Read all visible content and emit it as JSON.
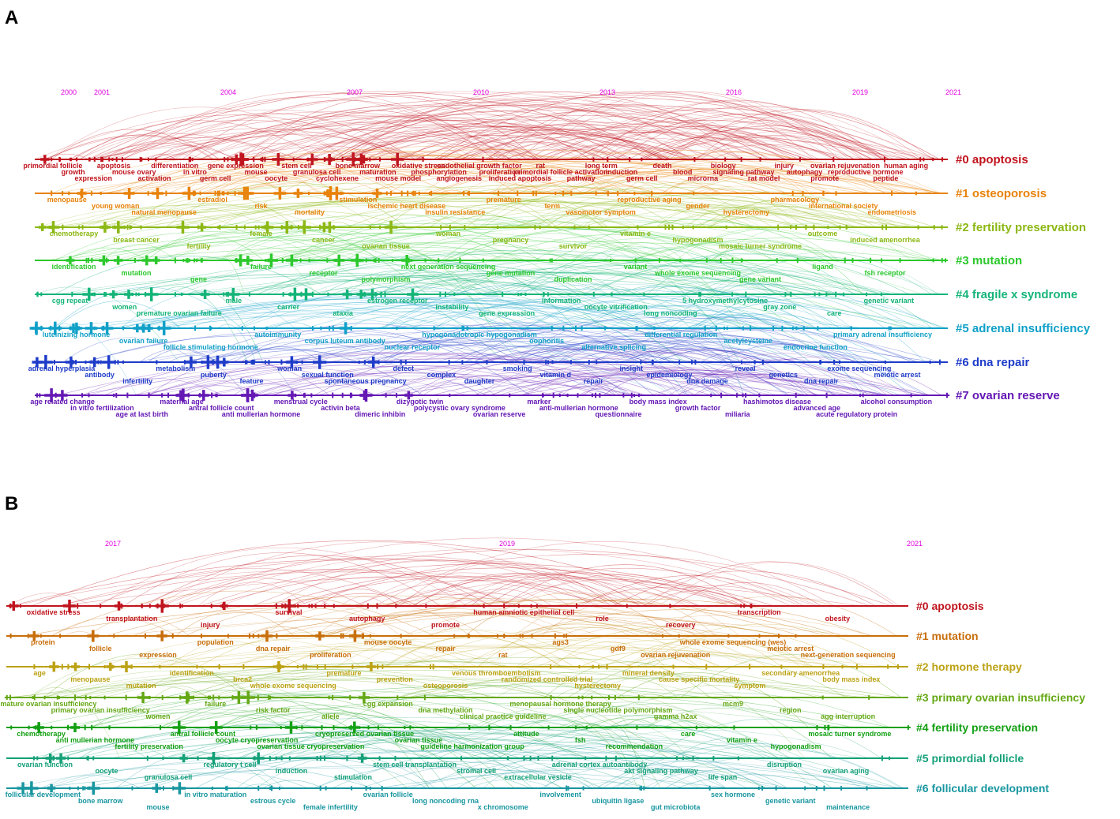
{
  "panels": [
    {
      "letter": "A",
      "years": [
        "2000",
        "2001",
        "2004",
        "2007",
        "2010",
        "2013",
        "2016",
        "2019",
        "2021"
      ],
      "clusters": [
        {
          "label": "#0 apoptosis",
          "color": "#c0141e",
          "keywords": [
            "primordial follicle",
            "growth",
            "expression",
            "apoptosis",
            "mouse ovary",
            "activation",
            "differentiation",
            "in vitro",
            "germ cell",
            "gene expression",
            "mouse",
            "oocyte",
            "stem cell",
            "granulosa cell",
            "cyclohexene",
            "bone marrow",
            "maturation",
            "mouse model",
            "oxidative stress",
            "phosphorylation",
            "angiogenesis",
            "endothelial growth factor",
            "proliferation",
            "induced apoptosis",
            "rat",
            "primordial follicle activation",
            "pathway",
            "long term",
            "induction",
            "germ cell",
            "death",
            "blood",
            "microrna",
            "biology",
            "signaling pathway",
            "rat model",
            "injury",
            "autophagy",
            "promote",
            "ovarian rejuvenation",
            "reproductive hormone",
            "peptide",
            "human aging"
          ]
        },
        {
          "label": "#1 osteoporosis",
          "color": "#e8820a",
          "keywords": [
            "menopause",
            "young woman",
            "natural menopause",
            "estradiol",
            "risk",
            "mortality",
            "stimulation",
            "ischemic heart disease",
            "insulin resistance",
            "premature",
            "term",
            "vasomotor symptom",
            "reproductive aging",
            "gender",
            "hysterectomy",
            "pharmacology",
            "international society",
            "endometriosis"
          ]
        },
        {
          "label": "#2 fertility preservation",
          "color": "#8cb814",
          "keywords": [
            "chemotherapy",
            "breast cancer",
            "fertility",
            "female",
            "cancer",
            "ovarian tissue",
            "woman",
            "pregnancy",
            "survivor",
            "vitamin e",
            "hypogonadism",
            "mosaic turner syndrome",
            "outcome",
            "induced amenorrhea"
          ]
        },
        {
          "label": "#3 mutation",
          "color": "#2cc82c",
          "keywords": [
            "identification",
            "mutation",
            "gene",
            "failure",
            "receptor",
            "polymorphism",
            "next generation sequencing",
            "gene mutation",
            "duplication",
            "variant",
            "whole exome sequencing",
            "gene variant",
            "ligand",
            "fsh receptor"
          ]
        },
        {
          "label": "#4 fragile x syndrome",
          "color": "#14b478",
          "keywords": [
            "cgg repeat",
            "women",
            "premature ovarian failure",
            "male",
            "carrier",
            "ataxia",
            "estrogen receptor",
            "instability",
            "gene expression",
            "information",
            "oocyte vitrification",
            "long noncoding",
            "5 hydroxymethylcytosine",
            "gray zone",
            "care",
            "genetic variant"
          ]
        },
        {
          "label": "#5 adrenal insufficiency",
          "color": "#10a0c8",
          "keywords": [
            "luteinizing hormone",
            "ovarian failure",
            "follicle stimulating hormone",
            "autoimmunity",
            "corpus luteum antibody",
            "nuclear receptor",
            "hypogonadotropic hypogonadism",
            "oophoritis",
            "alternative splicing",
            "differential regulation",
            "acetylcysteine",
            "endocrine function",
            "primary adrenal insufficiency"
          ]
        },
        {
          "label": "#6 dna repair",
          "color": "#1e3cc8",
          "keywords": [
            "adrenal hyperplasia",
            "antibody",
            "infertility",
            "metabolism",
            "puberty",
            "feature",
            "woman",
            "sexual function",
            "spontaneous pregnancy",
            "defect",
            "complex",
            "daughter",
            "smoking",
            "vitamin d",
            "repair",
            "insight",
            "epidemiology",
            "dna damage",
            "reveal",
            "genetics",
            "dna repair",
            "exome sequencing",
            "meiotic arrest"
          ]
        },
        {
          "label": "#7 ovarian reserve",
          "color": "#6418b4",
          "keywords": [
            "age related change",
            "in vitro fertilization",
            "age at last birth",
            "maternal age",
            "antral follicle count",
            "anti mullerian hormone",
            "menstrual cycle",
            "activin beta",
            "dimeric inhibin",
            "dizygotic twin",
            "polycystic ovary syndrome",
            "ovarian reserve",
            "marker",
            "anti-mullerian hormone",
            "questionnaire",
            "body mass index",
            "growth factor",
            "miliaria",
            "hashimotos disease",
            "advanced age",
            "acute regulatory protein",
            "alcohol consumption"
          ]
        }
      ]
    },
    {
      "letter": "B",
      "years": [
        "2017",
        "2019",
        "2021"
      ],
      "clusters": [
        {
          "label": "#0 apoptosis",
          "color": "#c0141e",
          "keywords": [
            "oxidative stress",
            "transplantation",
            "injury",
            "survival",
            "autophagy",
            "promote",
            "human amniotic epithelial cell",
            "role",
            "recovery",
            "transcription",
            "obesity"
          ]
        },
        {
          "label": "#1 mutation",
          "color": "#c86e0a",
          "keywords": [
            "protein",
            "follicle",
            "expression",
            "population",
            "dna repair",
            "proliferation",
            "mouse oocyte",
            "repair",
            "rat",
            "ags3",
            "gdf9",
            "ovarian rejuvenation",
            "whole exome sequencing (wes)",
            "meiotic arrest",
            "next-generation sequencing"
          ]
        },
        {
          "label": "#2 hormone therapy",
          "color": "#bca214",
          "keywords": [
            "age",
            "menopause",
            "mutation",
            "identification",
            "brca2",
            "whole exome sequencing",
            "premature",
            "prevention",
            "osteoporosis",
            "venous thromboembolism",
            "randomized controlled trial",
            "hysterectomy",
            "mineral density",
            "cause specific mortality",
            "symptom",
            "secondary amenorrhea",
            "body mass index"
          ]
        },
        {
          "label": "#3 primary ovarian insufficiency",
          "color": "#64a814",
          "keywords": [
            "premature ovarian insufficiency",
            "primary ovarian insufficiency",
            "women",
            "failure",
            "risk factor",
            "allele",
            "cgg expansion",
            "dna methylation",
            "clinical practice guideline",
            "menopausal hormone therapy",
            "single nucleotide polymorphism",
            "gamma h2ax",
            "mcm9",
            "region",
            "agg interruption"
          ]
        },
        {
          "label": "#4 fertility preservation",
          "color": "#14a014",
          "keywords": [
            "chemotherapy",
            "anti mullerian hormone",
            "fertility preservation",
            "antral follicle count",
            "oocyte cryopreservation",
            "ovarian tissue cryopreservation",
            "cryopreserved ovarian tissue",
            "ovarian tissue",
            "guideline harmonization group",
            "attitude",
            "fsh",
            "recommendation",
            "care",
            "vitamin e",
            "hypogonadism",
            "mosaic turner syndrome"
          ]
        },
        {
          "label": "#5 primordial follicle",
          "color": "#14a078",
          "keywords": [
            "ovarian function",
            "oocyte",
            "granulosa cell",
            "regulatory t cell",
            "induction",
            "stimulation",
            "stem cell transplantation",
            "stromal cell",
            "extracellular vesicle",
            "adrenal cortex autoantibody",
            "akt signaling pathway",
            "life span",
            "disruption",
            "ovarian aging"
          ]
        },
        {
          "label": "#6 follicular development",
          "color": "#1896a0",
          "keywords": [
            "follicular development",
            "bone marrow",
            "mouse",
            "in vitro maturation",
            "estrous cycle",
            "female infertility",
            "ovarian follicle",
            "long noncoding rna",
            "x chromosome",
            "involvement",
            "ubiquitin ligase",
            "gut microbiota",
            "sex hormone",
            "genetic variant",
            "maintenance"
          ]
        }
      ]
    }
  ]
}
